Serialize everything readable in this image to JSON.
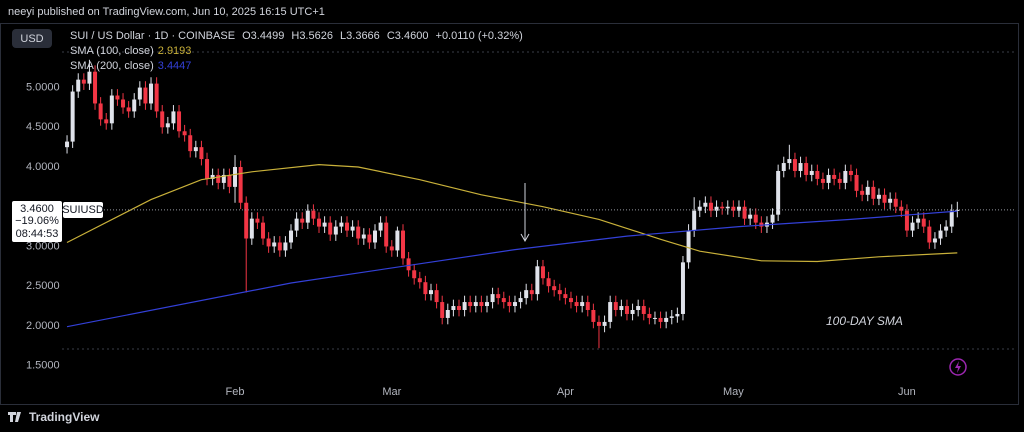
{
  "header": {
    "published": "neeyi published on TradingView.com, Jun 10, 2025 16:15 UTC+1"
  },
  "footer": {
    "brand": "TradingView"
  },
  "chart_data": {
    "type": "candlestick",
    "title": "SUI / US Dollar · 1D · COINBASE",
    "currency": "USD",
    "legend": {
      "open": "O3.4499",
      "high": "H3.5626",
      "low": "L3.3666",
      "close": "C3.4600",
      "change": "+0.0110 (+0.32%)"
    },
    "price_tag": {
      "price": "3.4600",
      "change": "−19.06%",
      "countdown": "08:44:53",
      "symbol": "SUIUSD"
    },
    "annotation": "100-DAY SMA",
    "up_color": "#e0e3eb",
    "down_color": "#f23645",
    "xlim": [
      -0.9,
      169.3
    ],
    "xticks": [
      {
        "value": 30,
        "label": "Feb"
      },
      {
        "value": 58,
        "label": "Mar"
      },
      {
        "value": 89,
        "label": "Apr"
      },
      {
        "value": 119,
        "label": "May"
      },
      {
        "value": 150,
        "label": "Jun"
      }
    ],
    "ylim": [
      1.13,
      5.75
    ],
    "yticks": [
      {
        "value": 5,
        "label": "5.0000"
      },
      {
        "value": 4.5,
        "label": "4.5000"
      },
      {
        "value": 4,
        "label": "4.0000"
      },
      {
        "value": 3,
        "label": "3.0000"
      },
      {
        "value": 2.5,
        "label": "2.5000"
      },
      {
        "value": 2,
        "label": "2.0000"
      },
      {
        "value": 1.5,
        "label": "1.5000"
      }
    ],
    "x": [
      0,
      1,
      2,
      3,
      4,
      5,
      6,
      7,
      8,
      9,
      10,
      11,
      12,
      13,
      14,
      15,
      16,
      17,
      18,
      19,
      20,
      21,
      22,
      23,
      24,
      25,
      26,
      27,
      28,
      29,
      30,
      31,
      32,
      33,
      34,
      35,
      36,
      37,
      38,
      39,
      40,
      41,
      42,
      43,
      44,
      45,
      46,
      47,
      48,
      49,
      50,
      51,
      52,
      53,
      54,
      55,
      56,
      57,
      58,
      59,
      60,
      61,
      62,
      63,
      64,
      65,
      66,
      67,
      68,
      69,
      70,
      71,
      72,
      73,
      74,
      75,
      76,
      77,
      78,
      79,
      80,
      81,
      82,
      83,
      84,
      85,
      86,
      87,
      88,
      89,
      90,
      91,
      92,
      93,
      94,
      95,
      96,
      97,
      98,
      99,
      100,
      101,
      102,
      103,
      104,
      105,
      106,
      107,
      108,
      109,
      110,
      111,
      112,
      113,
      114,
      115,
      116,
      117,
      118,
      119,
      120,
      121,
      122,
      123,
      124,
      125,
      126,
      127,
      128,
      129,
      130,
      131,
      132,
      133,
      134,
      135,
      136,
      137,
      138,
      139,
      140,
      141,
      142,
      143,
      144,
      145,
      146,
      147,
      148,
      149,
      150,
      151,
      152,
      153,
      154,
      155,
      156,
      157,
      158,
      159
    ],
    "open": [
      4.25,
      4.32,
      4.95,
      5.1,
      5.05,
      5.2,
      4.8,
      4.6,
      4.55,
      4.9,
      4.85,
      4.75,
      4.7,
      4.85,
      5.0,
      4.8,
      5.05,
      4.7,
      4.5,
      4.55,
      4.7,
      4.45,
      4.4,
      4.2,
      4.25,
      4.1,
      3.85,
      3.9,
      3.8,
      3.9,
      3.75,
      4.0,
      3.55,
      3.1,
      3.35,
      3.3,
      3.1,
      3.0,
      3.05,
      2.95,
      3.05,
      3.2,
      3.35,
      3.3,
      3.45,
      3.35,
      3.25,
      3.3,
      3.15,
      3.25,
      3.3,
      3.2,
      3.25,
      3.1,
      3.15,
      3.05,
      3.2,
      3.3,
      3.0,
      2.95,
      3.2,
      2.85,
      2.7,
      2.6,
      2.55,
      2.4,
      2.45,
      2.3,
      2.1,
      2.2,
      2.25,
      2.2,
      2.3,
      2.25,
      2.3,
      2.25,
      2.3,
      2.4,
      2.35,
      2.3,
      2.25,
      2.3,
      2.35,
      2.45,
      2.4,
      2.75,
      2.6,
      2.5,
      2.45,
      2.4,
      2.35,
      2.3,
      2.25,
      2.3,
      2.2,
      2.05,
      2.0,
      2.05,
      2.3,
      2.2,
      2.25,
      2.15,
      2.2,
      2.25,
      2.15,
      2.1,
      2.1,
      2.05,
      2.1,
      2.12,
      2.15,
      2.8,
      3.2,
      3.45,
      3.5,
      3.55,
      3.45,
      3.5,
      3.48,
      3.5,
      3.45,
      3.5,
      3.35,
      3.4,
      3.3,
      3.25,
      3.3,
      3.4,
      3.95,
      4.05,
      4.1,
      3.95,
      4.05,
      3.9,
      3.95,
      3.85,
      3.8,
      3.9,
      3.85,
      3.8,
      3.95,
      3.9,
      3.7,
      3.65,
      3.75,
      3.6,
      3.65,
      3.55,
      3.6,
      3.5,
      3.45,
      3.2,
      3.3,
      3.35,
      3.25,
      3.05,
      3.1,
      3.2,
      3.25,
      3.4499
    ],
    "high": [
      4.4,
      5.03,
      5.18,
      5.18,
      5.35,
      5.28,
      4.88,
      4.68,
      4.98,
      4.98,
      4.93,
      4.83,
      4.93,
      5.08,
      5.08,
      5.13,
      5.13,
      4.78,
      4.63,
      4.78,
      4.78,
      4.53,
      4.48,
      4.33,
      4.33,
      4.18,
      3.98,
      3.98,
      3.98,
      3.98,
      4.15,
      4.08,
      3.63,
      3.43,
      3.43,
      3.38,
      3.18,
      3.13,
      3.13,
      3.13,
      3.28,
      3.43,
      3.43,
      3.53,
      3.53,
      3.43,
      3.38,
      3.38,
      3.33,
      3.38,
      3.38,
      3.33,
      3.33,
      3.23,
      3.23,
      3.28,
      3.38,
      3.38,
      3.08,
      3.25,
      3.28,
      2.93,
      2.78,
      2.68,
      2.63,
      2.53,
      2.53,
      2.38,
      2.28,
      2.33,
      2.33,
      2.38,
      2.38,
      2.38,
      2.38,
      2.38,
      2.48,
      2.48,
      2.43,
      2.38,
      2.38,
      2.43,
      2.53,
      2.53,
      2.83,
      2.83,
      2.68,
      2.58,
      2.53,
      2.48,
      2.43,
      2.38,
      2.38,
      2.38,
      2.28,
      2.13,
      2.13,
      2.38,
      2.38,
      2.33,
      2.33,
      2.28,
      2.33,
      2.33,
      2.23,
      2.18,
      2.18,
      2.18,
      2.2,
      2.23,
      2.88,
      3.28,
      3.62,
      3.58,
      3.63,
      3.63,
      3.58,
      3.56,
      3.58,
      3.58,
      3.58,
      3.58,
      3.48,
      3.48,
      3.38,
      3.38,
      3.48,
      4.03,
      4.13,
      4.28,
      4.18,
      4.13,
      4.13,
      4.03,
      4.03,
      3.93,
      3.98,
      3.98,
      3.93,
      4.03,
      4.03,
      3.98,
      3.78,
      3.83,
      3.83,
      3.73,
      3.73,
      3.68,
      3.68,
      3.58,
      3.53,
      3.38,
      3.43,
      3.43,
      3.33,
      3.18,
      3.28,
      3.33,
      3.53,
      3.5626
    ],
    "low": [
      4.17,
      4.24,
      4.87,
      4.97,
      4.97,
      4.72,
      4.52,
      4.47,
      4.47,
      4.77,
      4.67,
      4.62,
      4.62,
      4.77,
      4.72,
      4.72,
      4.62,
      4.42,
      4.42,
      4.47,
      4.37,
      4.32,
      4.12,
      4.12,
      4.02,
      3.77,
      3.77,
      3.72,
      3.72,
      3.67,
      3.55,
      3.47,
      2.42,
      3.02,
      3.22,
      3.02,
      2.92,
      2.92,
      2.87,
      2.87,
      2.97,
      3.12,
      3.22,
      3.22,
      3.27,
      3.17,
      3.17,
      3.07,
      3.07,
      3.17,
      3.12,
      3.12,
      3.02,
      3.02,
      2.97,
      2.97,
      3.12,
      2.92,
      2.87,
      2.87,
      2.77,
      2.62,
      2.52,
      2.47,
      2.32,
      2.32,
      2.22,
      2.02,
      2.02,
      2.12,
      2.12,
      2.12,
      2.17,
      2.17,
      2.17,
      2.17,
      2.22,
      2.27,
      2.22,
      2.17,
      2.17,
      2.22,
      2.27,
      2.32,
      2.32,
      2.52,
      2.42,
      2.37,
      2.32,
      2.27,
      2.22,
      2.17,
      2.17,
      2.12,
      1.97,
      1.72,
      1.92,
      1.97,
      2.12,
      2.12,
      2.07,
      2.07,
      2.12,
      2.07,
      2.02,
      2.02,
      1.97,
      1.97,
      2.02,
      2.04,
      2.07,
      2.72,
      3.12,
      3.37,
      3.42,
      3.37,
      3.37,
      3.4,
      3.4,
      3.37,
      3.37,
      3.27,
      3.27,
      3.22,
      3.17,
      3.17,
      3.22,
      3.32,
      3.87,
      3.97,
      3.87,
      3.87,
      3.82,
      3.82,
      3.77,
      3.72,
      3.72,
      3.77,
      3.72,
      3.72,
      3.82,
      3.62,
      3.57,
      3.57,
      3.52,
      3.52,
      3.47,
      3.47,
      3.42,
      3.37,
      3.12,
      3.12,
      3.22,
      3.17,
      2.97,
      2.97,
      3.02,
      3.12,
      3.17,
      3.3666
    ],
    "close": [
      4.32,
      4.95,
      5.1,
      5.05,
      5.2,
      4.8,
      4.6,
      4.55,
      4.9,
      4.85,
      4.75,
      4.7,
      4.85,
      5.0,
      4.8,
      5.05,
      4.7,
      4.5,
      4.55,
      4.7,
      4.45,
      4.4,
      4.2,
      4.25,
      4.1,
      3.85,
      3.9,
      3.8,
      3.9,
      3.75,
      4.0,
      3.55,
      3.1,
      3.35,
      3.3,
      3.1,
      3.0,
      3.05,
      2.95,
      3.05,
      3.2,
      3.35,
      3.3,
      3.45,
      3.35,
      3.25,
      3.3,
      3.15,
      3.25,
      3.3,
      3.2,
      3.25,
      3.1,
      3.15,
      3.05,
      3.2,
      3.3,
      3.0,
      2.95,
      3.2,
      2.85,
      2.7,
      2.6,
      2.55,
      2.4,
      2.45,
      2.3,
      2.1,
      2.2,
      2.25,
      2.2,
      2.3,
      2.25,
      2.3,
      2.25,
      2.3,
      2.4,
      2.35,
      2.3,
      2.25,
      2.3,
      2.35,
      2.45,
      2.4,
      2.75,
      2.6,
      2.5,
      2.45,
      2.4,
      2.35,
      2.3,
      2.25,
      2.3,
      2.2,
      2.05,
      2.0,
      2.05,
      2.3,
      2.2,
      2.25,
      2.15,
      2.2,
      2.25,
      2.15,
      2.1,
      2.1,
      2.05,
      2.1,
      2.12,
      2.15,
      2.8,
      3.2,
      3.45,
      3.5,
      3.55,
      3.45,
      3.5,
      3.48,
      3.5,
      3.45,
      3.5,
      3.35,
      3.4,
      3.3,
      3.25,
      3.3,
      3.4,
      3.95,
      4.05,
      4.1,
      3.95,
      4.05,
      3.9,
      3.95,
      3.85,
      3.8,
      3.9,
      3.85,
      3.8,
      3.95,
      3.9,
      3.7,
      3.65,
      3.75,
      3.6,
      3.65,
      3.55,
      3.6,
      3.5,
      3.45,
      3.2,
      3.3,
      3.35,
      3.25,
      3.05,
      3.1,
      3.2,
      3.25,
      3.45,
      3.46
    ],
    "series": [
      {
        "name": "SMA (100, close)",
        "color": "#c9b13a",
        "x": [
          0,
          15,
          24,
          33,
          45,
          52,
          63,
          74,
          85,
          95,
          106,
          113,
          124,
          134,
          145,
          159
        ],
        "values": [
          3.05,
          3.59,
          3.84,
          3.94,
          4.03,
          4.0,
          3.84,
          3.65,
          3.5,
          3.34,
          3.09,
          2.94,
          2.82,
          2.81,
          2.87,
          2.9193
        ]
      },
      {
        "name": "SMA (200, close)",
        "color": "#3340d8",
        "x": [
          0,
          40,
          80,
          100,
          120,
          140,
          159
        ],
        "values": [
          1.99,
          2.54,
          2.96,
          3.13,
          3.25,
          3.34,
          3.4447
        ]
      }
    ]
  }
}
